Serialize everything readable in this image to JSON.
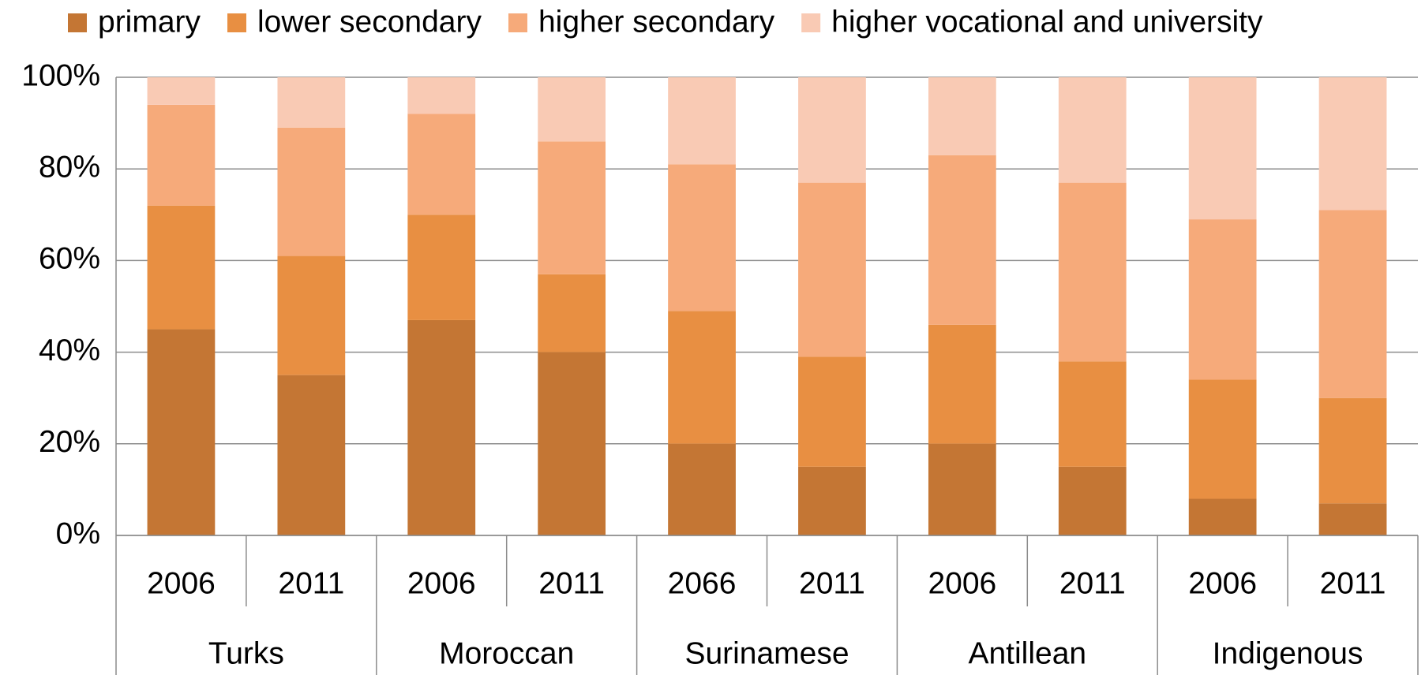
{
  "chart_data": {
    "type": "stacked_bar",
    "categories": [
      "2006",
      "2011",
      "2006",
      "2011",
      "2066",
      "2011",
      "2006",
      "2011",
      "2006",
      "2011"
    ],
    "groups": [
      "Turks",
      "Moroccan",
      "Surinamese",
      "Antillean",
      "Indigenous"
    ],
    "series": [
      {
        "name": "primary",
        "color": "#c47634",
        "values": [
          45,
          35,
          47,
          40,
          20,
          15,
          20,
          15,
          8,
          7
        ]
      },
      {
        "name": "lower secondary",
        "color": "#e88f42",
        "values": [
          27,
          26,
          23,
          17,
          29,
          24,
          26,
          23,
          26,
          23
        ]
      },
      {
        "name": "higher secondary",
        "color": "#f6aa7a",
        "values": [
          22,
          28,
          22,
          29,
          32,
          38,
          37,
          39,
          35,
          41
        ]
      },
      {
        "name": "higher vocational and university",
        "color": "#f9cab4",
        "values": [
          6,
          11,
          8,
          14,
          19,
          23,
          17,
          23,
          31,
          29
        ]
      }
    ],
    "ylim": [
      0,
      100
    ],
    "yticks": [
      {
        "value": 0,
        "label": "0%"
      },
      {
        "value": 20,
        "label": "20%"
      },
      {
        "value": 40,
        "label": "40%"
      },
      {
        "value": 60,
        "label": "60%"
      },
      {
        "value": 80,
        "label": "80%"
      },
      {
        "value": 100,
        "label": "100%"
      }
    ],
    "grid": true,
    "legend": "top"
  }
}
